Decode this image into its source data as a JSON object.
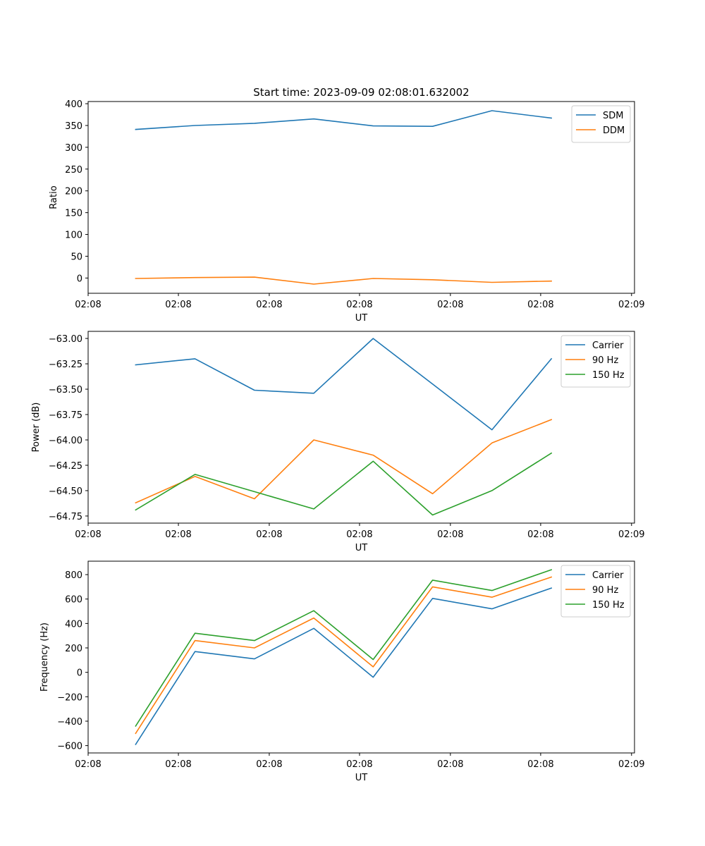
{
  "figure_title": "Start time: 2023-09-09 02:08:01.632002",
  "chart_data": [
    {
      "type": "line",
      "title": "Start time: 2023-09-09 02:08:01.632002",
      "xlabel": "UT",
      "ylabel": "Ratio",
      "x": [
        1,
        2,
        3,
        4,
        5,
        6,
        7,
        8
      ],
      "xlim": [
        0.2,
        9.4
      ],
      "x_ticks": [
        {
          "pos": 0.2,
          "label": "02:08"
        },
        {
          "pos": 1.72,
          "label": "02:08"
        },
        {
          "pos": 3.25,
          "label": "02:08"
        },
        {
          "pos": 4.77,
          "label": "02:08"
        },
        {
          "pos": 6.3,
          "label": "02:08"
        },
        {
          "pos": 7.82,
          "label": "02:08"
        },
        {
          "pos": 9.35,
          "label": "02:09"
        }
      ],
      "ylim": [
        -35,
        405
      ],
      "y_ticks": [
        {
          "value": 0,
          "label": "0"
        },
        {
          "value": 50,
          "label": "50"
        },
        {
          "value": 100,
          "label": "100"
        },
        {
          "value": 150,
          "label": "150"
        },
        {
          "value": 200,
          "label": "200"
        },
        {
          "value": 250,
          "label": "250"
        },
        {
          "value": 300,
          "label": "300"
        },
        {
          "value": 350,
          "label": "350"
        },
        {
          "value": 400,
          "label": "400"
        }
      ],
      "series": [
        {
          "name": "SDM",
          "color": "#1f77b4",
          "values": [
            341,
            350,
            355,
            365,
            349,
            348,
            384,
            367
          ]
        },
        {
          "name": "DDM",
          "color": "#ff7f0e",
          "values": [
            -1,
            1,
            2,
            -14,
            -1,
            -4,
            -10,
            -7
          ]
        }
      ],
      "legend": "upper-right",
      "grid": false
    },
    {
      "type": "line",
      "title": "",
      "xlabel": "UT",
      "ylabel": "Power (dB)",
      "x": [
        1,
        2,
        3,
        4,
        5,
        6,
        7,
        8
      ],
      "xlim": [
        0.2,
        9.4
      ],
      "x_ticks": [
        {
          "pos": 0.2,
          "label": "02:08"
        },
        {
          "pos": 1.72,
          "label": "02:08"
        },
        {
          "pos": 3.25,
          "label": "02:08"
        },
        {
          "pos": 4.77,
          "label": "02:08"
        },
        {
          "pos": 6.3,
          "label": "02:08"
        },
        {
          "pos": 7.82,
          "label": "02:08"
        },
        {
          "pos": 9.35,
          "label": "02:09"
        }
      ],
      "ylim": [
        -64.82,
        -62.93
      ],
      "y_ticks": [
        {
          "value": -64.75,
          "label": "−64.75"
        },
        {
          "value": -64.5,
          "label": "−64.50"
        },
        {
          "value": -64.25,
          "label": "−64.25"
        },
        {
          "value": -64.0,
          "label": "−64.00"
        },
        {
          "value": -63.75,
          "label": "−63.75"
        },
        {
          "value": -63.5,
          "label": "−63.50"
        },
        {
          "value": -63.25,
          "label": "−63.25"
        },
        {
          "value": -63.0,
          "label": "−63.00"
        }
      ],
      "series": [
        {
          "name": "Carrier",
          "color": "#1f77b4",
          "values": [
            -63.26,
            -63.2,
            -63.51,
            -63.54,
            -63.0,
            -63.45,
            -63.9,
            -63.2
          ]
        },
        {
          "name": "90 Hz",
          "color": "#ff7f0e",
          "values": [
            -64.62,
            -64.36,
            -64.58,
            -64.0,
            -64.15,
            -64.53,
            -64.03,
            -63.8
          ]
        },
        {
          "name": "150 Hz",
          "color": "#2ca02c",
          "values": [
            -64.69,
            -64.34,
            -64.51,
            -64.68,
            -64.21,
            -64.74,
            -64.5,
            -64.13
          ]
        }
      ],
      "legend": "upper-right",
      "grid": false
    },
    {
      "type": "line",
      "title": "",
      "xlabel": "UT",
      "ylabel": "Frequency (Hz)",
      "x": [
        1,
        2,
        3,
        4,
        5,
        6,
        7,
        8
      ],
      "xlim": [
        0.2,
        9.4
      ],
      "x_ticks": [
        {
          "pos": 0.2,
          "label": "02:08"
        },
        {
          "pos": 1.72,
          "label": "02:08"
        },
        {
          "pos": 3.25,
          "label": "02:08"
        },
        {
          "pos": 4.77,
          "label": "02:08"
        },
        {
          "pos": 6.3,
          "label": "02:08"
        },
        {
          "pos": 7.82,
          "label": "02:08"
        },
        {
          "pos": 9.35,
          "label": "02:09"
        }
      ],
      "ylim": [
        -660,
        910
      ],
      "y_ticks": [
        {
          "value": -600,
          "label": "−600"
        },
        {
          "value": -400,
          "label": "−400"
        },
        {
          "value": -200,
          "label": "−200"
        },
        {
          "value": 0,
          "label": "0"
        },
        {
          "value": 200,
          "label": "200"
        },
        {
          "value": 400,
          "label": "400"
        },
        {
          "value": 600,
          "label": "600"
        },
        {
          "value": 800,
          "label": "800"
        }
      ],
      "series": [
        {
          "name": "Carrier",
          "color": "#1f77b4",
          "values": [
            -590,
            170,
            110,
            360,
            -40,
            605,
            520,
            690
          ]
        },
        {
          "name": "90 Hz",
          "color": "#ff7f0e",
          "values": [
            -500,
            260,
            200,
            445,
            45,
            700,
            615,
            780
          ]
        },
        {
          "name": "150 Hz",
          "color": "#2ca02c",
          "values": [
            -440,
            320,
            260,
            505,
            105,
            755,
            670,
            840
          ]
        }
      ],
      "legend": "upper-right",
      "grid": false
    }
  ]
}
